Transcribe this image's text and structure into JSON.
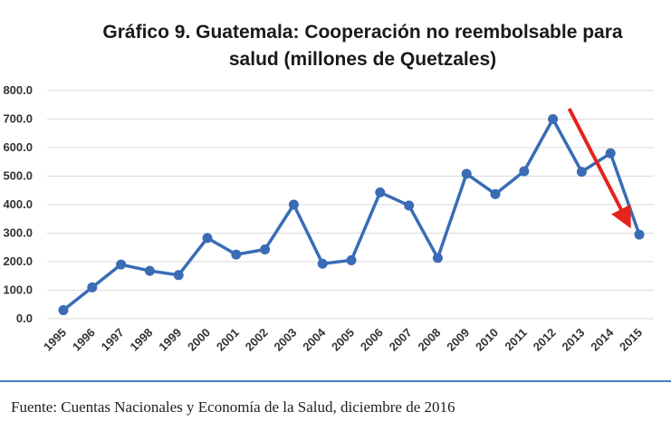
{
  "chart_data": {
    "type": "line",
    "title_line1": "Gráfico 9. Guatemala: Cooperación no reembolsable para",
    "title_line2": "salud (millones de Quetzales)",
    "xlabel": "",
    "ylabel": "",
    "categories": [
      "1995",
      "1996",
      "1997",
      "1998",
      "1999",
      "2000",
      "2001",
      "2002",
      "2003",
      "2004",
      "2005",
      "2006",
      "2007",
      "2008",
      "2009",
      "2010",
      "2011",
      "2012",
      "2013",
      "2014",
      "2015"
    ],
    "values": [
      30,
      110,
      190,
      168,
      153,
      283,
      225,
      243,
      400,
      193,
      205,
      443,
      397,
      213,
      508,
      437,
      517,
      700,
      515,
      580,
      295
    ],
    "yticks": [
      "0.0",
      "100.0",
      "200.0",
      "300.0",
      "400.0",
      "500.0",
      "600.0",
      "700.0",
      "800.0"
    ],
    "ylim": [
      0,
      800
    ],
    "grid": true,
    "legend": "none",
    "line_color": "#3a6cb5",
    "marker_color": "#3a6cb5",
    "annotation": {
      "type": "arrow",
      "from_year": "2012",
      "to_year": "2015",
      "color": "#e5221c"
    }
  },
  "footer": {
    "source": "Fuente: Cuentas Nacionales y Economía de la Salud, diciembre de 2016"
  }
}
